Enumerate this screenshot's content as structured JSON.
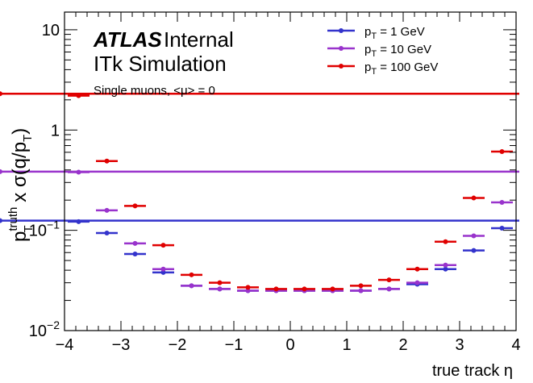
{
  "chart_data": {
    "type": "scatter",
    "xlabel": "true track η",
    "ylabel": {
      "pre": "p",
      "sup": "truth",
      "sub": "T",
      "mid": " x σ(q/p",
      "sub2": "T",
      "end": ")"
    },
    "xlim": [
      -4,
      4
    ],
    "ylim": [
      0.01,
      15
    ],
    "yscale": "log",
    "x_ticks": [
      -4,
      -3,
      -2,
      -1,
      0,
      1,
      2,
      3,
      4
    ],
    "x_tick_labels": [
      "−4",
      "−3",
      "−2",
      "−1",
      "0",
      "1",
      "2",
      "3",
      "4"
    ],
    "y_tick_labels": [
      {
        "value": 10,
        "text": "10"
      },
      {
        "value": 1,
        "text": "1"
      },
      {
        "value": 0.1,
        "base": "10",
        "exp": "−1"
      },
      {
        "value": 0.01,
        "base": "10",
        "exp": "−2"
      }
    ],
    "atlas": {
      "brand": "ATLAS",
      "status": "Internal",
      "line2": "ITk Simulation",
      "line3": "Single muons, <μ> = 0"
    },
    "bin_edges": [
      -4,
      -3.5,
      -3,
      -2.5,
      -2,
      -1.5,
      -1,
      -0.5,
      0,
      0.5,
      1,
      1.5,
      2,
      2.5,
      3,
      3.5,
      4
    ],
    "series": [
      {
        "name": "1 GeV",
        "label_prefix": "p",
        "label_sub": "T",
        "label_rest": " = 1 GeV",
        "color": "#3333cc",
        "values": [
          0.122,
          0.094,
          0.058,
          0.038,
          0.028,
          0.026,
          0.025,
          0.025,
          0.025,
          0.025,
          0.025,
          0.026,
          0.029,
          0.041,
          0.063,
          0.105,
          0.125
        ]
      },
      {
        "name": "10 GeV",
        "label_prefix": "p",
        "label_sub": "T",
        "label_rest": " = 10 GeV",
        "color": "#9933cc",
        "values": [
          0.38,
          0.158,
          0.074,
          0.041,
          0.028,
          0.026,
          0.025,
          0.025,
          0.025,
          0.025,
          0.025,
          0.026,
          0.03,
          0.045,
          0.088,
          0.19,
          0.385
        ]
      },
      {
        "name": "100 GeV",
        "label_prefix": "p",
        "label_sub": "T",
        "label_rest": " = 100 GeV",
        "color": "#e00000",
        "values": [
          2.2,
          0.49,
          0.175,
          0.071,
          0.036,
          0.03,
          0.027,
          0.026,
          0.026,
          0.026,
          0.028,
          0.032,
          0.041,
          0.077,
          0.21,
          0.61,
          2.3
        ]
      }
    ],
    "legend_position": "top-right",
    "grid": false
  }
}
